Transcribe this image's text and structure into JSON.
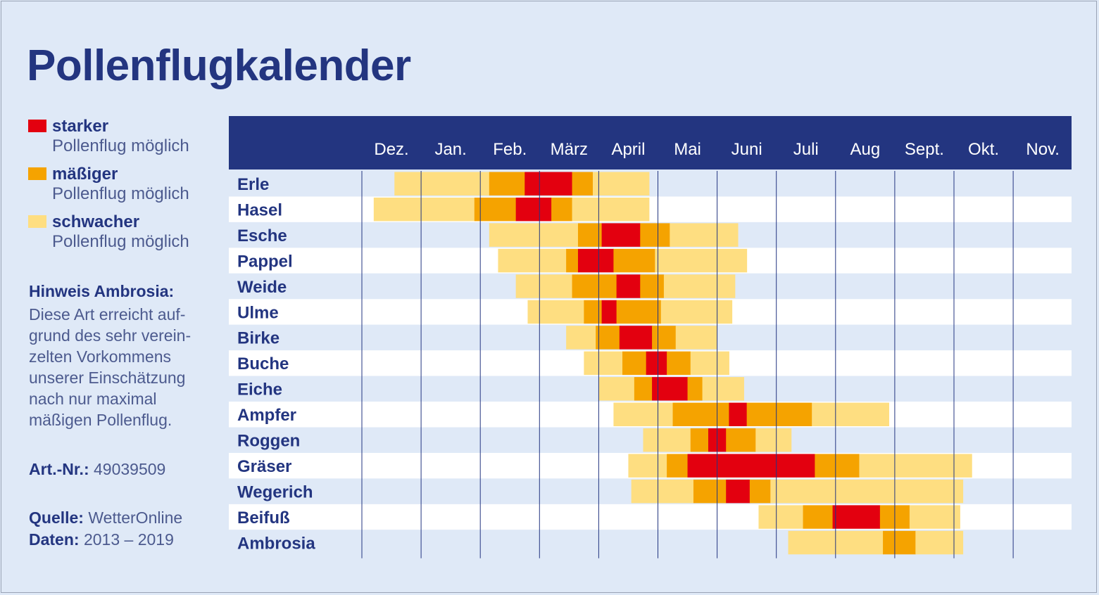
{
  "title": "Pollenflugkalender",
  "legend": [
    {
      "label_bold": "starker",
      "label": "Pollenflug möglich",
      "color": "#e3000f"
    },
    {
      "label_bold": "mäßiger",
      "label": "Pollenflug möglich",
      "color": "#f5a300"
    },
    {
      "label_bold": "schwacher",
      "label": "Pollenflug möglich",
      "color": "#fede81"
    }
  ],
  "note": {
    "title": "Hinweis Ambrosia:",
    "lines": [
      "Diese Art erreicht auf-",
      "grund des sehr verein-",
      "zelten Vorkommens",
      "unserer Einschätzung",
      "nach nur maximal",
      "mäßigen Pollenflug."
    ]
  },
  "meta": {
    "art_label": "Art.-Nr.:",
    "art_value": "49039509",
    "source_label": "Quelle:",
    "source_value": "WetterOnline",
    "data_label": "Daten:",
    "data_value": "2013 – 2019"
  },
  "colors": {
    "header": "#233580",
    "header_text": "#ffffff",
    "row_blue": "#dfe9f7",
    "row_white": "#ffffff",
    "gridline": "#233580",
    "weak": "#fede81",
    "moderate": "#f5a300",
    "strong": "#e3000f"
  },
  "chart_data": {
    "type": "gantt",
    "months": [
      "Dez.",
      "Jan.",
      "Feb.",
      "März",
      "April",
      "Mai",
      "Juni",
      "Juli",
      "Aug",
      "Sept.",
      "Okt.",
      "Nov."
    ],
    "unit": "months from start of December",
    "species": [
      {
        "name": "Erle",
        "segments": [
          [
            0.55,
            1.0,
            "weak"
          ],
          [
            1.0,
            2.15,
            "weak"
          ],
          [
            2.15,
            2.75,
            "moderate"
          ],
          [
            2.75,
            3.55,
            "strong"
          ],
          [
            3.55,
            3.9,
            "moderate"
          ],
          [
            3.9,
            4.85,
            "weak"
          ]
        ]
      },
      {
        "name": "Hasel",
        "segments": [
          [
            0.2,
            1.0,
            "weak"
          ],
          [
            1.0,
            1.9,
            "weak"
          ],
          [
            1.9,
            2.6,
            "moderate"
          ],
          [
            2.6,
            3.2,
            "strong"
          ],
          [
            3.2,
            3.55,
            "moderate"
          ],
          [
            3.55,
            4.85,
            "weak"
          ]
        ]
      },
      {
        "name": "Esche",
        "segments": [
          [
            2.15,
            3.65,
            "weak"
          ],
          [
            3.65,
            4.05,
            "moderate"
          ],
          [
            4.05,
            4.7,
            "strong"
          ],
          [
            4.7,
            5.2,
            "moderate"
          ],
          [
            5.2,
            6.35,
            "weak"
          ]
        ]
      },
      {
        "name": "Pappel",
        "segments": [
          [
            2.3,
            3.45,
            "weak"
          ],
          [
            3.45,
            3.65,
            "moderate"
          ],
          [
            3.65,
            4.25,
            "strong"
          ],
          [
            4.25,
            4.95,
            "moderate"
          ],
          [
            4.95,
            6.5,
            "weak"
          ]
        ]
      },
      {
        "name": "Weide",
        "segments": [
          [
            2.6,
            3.55,
            "weak"
          ],
          [
            3.55,
            4.3,
            "moderate"
          ],
          [
            4.3,
            4.7,
            "strong"
          ],
          [
            4.7,
            5.1,
            "moderate"
          ],
          [
            5.1,
            6.3,
            "weak"
          ]
        ]
      },
      {
        "name": "Ulme",
        "segments": [
          [
            2.8,
            3.75,
            "weak"
          ],
          [
            3.75,
            4.05,
            "moderate"
          ],
          [
            4.05,
            4.3,
            "strong"
          ],
          [
            4.3,
            5.05,
            "moderate"
          ],
          [
            5.05,
            6.25,
            "weak"
          ]
        ]
      },
      {
        "name": "Birke",
        "segments": [
          [
            3.45,
            3.95,
            "weak"
          ],
          [
            3.95,
            4.35,
            "moderate"
          ],
          [
            4.35,
            4.9,
            "strong"
          ],
          [
            4.9,
            5.3,
            "moderate"
          ],
          [
            5.3,
            6.0,
            "weak"
          ]
        ]
      },
      {
        "name": "Buche",
        "segments": [
          [
            3.75,
            4.4,
            "weak"
          ],
          [
            4.4,
            4.8,
            "moderate"
          ],
          [
            4.8,
            5.15,
            "strong"
          ],
          [
            5.15,
            5.55,
            "moderate"
          ],
          [
            5.55,
            6.2,
            "weak"
          ]
        ]
      },
      {
        "name": "Eiche",
        "segments": [
          [
            4.0,
            4.6,
            "weak"
          ],
          [
            4.6,
            4.9,
            "moderate"
          ],
          [
            4.9,
            5.5,
            "strong"
          ],
          [
            5.5,
            5.75,
            "moderate"
          ],
          [
            5.75,
            6.45,
            "weak"
          ]
        ]
      },
      {
        "name": "Ampfer",
        "segments": [
          [
            4.25,
            5.25,
            "weak"
          ],
          [
            5.25,
            6.2,
            "moderate"
          ],
          [
            6.2,
            6.5,
            "strong"
          ],
          [
            6.5,
            7.6,
            "moderate"
          ],
          [
            7.6,
            8.9,
            "weak"
          ]
        ]
      },
      {
        "name": "Roggen",
        "segments": [
          [
            4.75,
            5.55,
            "weak"
          ],
          [
            5.55,
            5.85,
            "moderate"
          ],
          [
            5.85,
            6.15,
            "strong"
          ],
          [
            6.15,
            6.65,
            "moderate"
          ],
          [
            6.65,
            7.25,
            "weak"
          ]
        ]
      },
      {
        "name": "Gräser",
        "segments": [
          [
            4.5,
            5.15,
            "weak"
          ],
          [
            5.15,
            5.5,
            "moderate"
          ],
          [
            5.5,
            7.65,
            "strong"
          ],
          [
            7.65,
            8.4,
            "moderate"
          ],
          [
            8.4,
            10.3,
            "weak"
          ]
        ]
      },
      {
        "name": "Wegerich",
        "segments": [
          [
            4.55,
            5.6,
            "weak"
          ],
          [
            5.6,
            6.15,
            "moderate"
          ],
          [
            6.15,
            6.55,
            "strong"
          ],
          [
            6.55,
            6.9,
            "moderate"
          ],
          [
            6.9,
            10.15,
            "weak"
          ]
        ]
      },
      {
        "name": "Beifuß",
        "segments": [
          [
            6.7,
            7.45,
            "weak"
          ],
          [
            7.45,
            7.95,
            "moderate"
          ],
          [
            7.95,
            8.75,
            "strong"
          ],
          [
            8.75,
            9.25,
            "moderate"
          ],
          [
            9.25,
            10.1,
            "weak"
          ]
        ]
      },
      {
        "name": "Ambrosia",
        "segments": [
          [
            7.2,
            8.8,
            "weak"
          ],
          [
            8.8,
            9.35,
            "moderate"
          ],
          [
            9.35,
            10.15,
            "weak"
          ]
        ]
      }
    ]
  }
}
